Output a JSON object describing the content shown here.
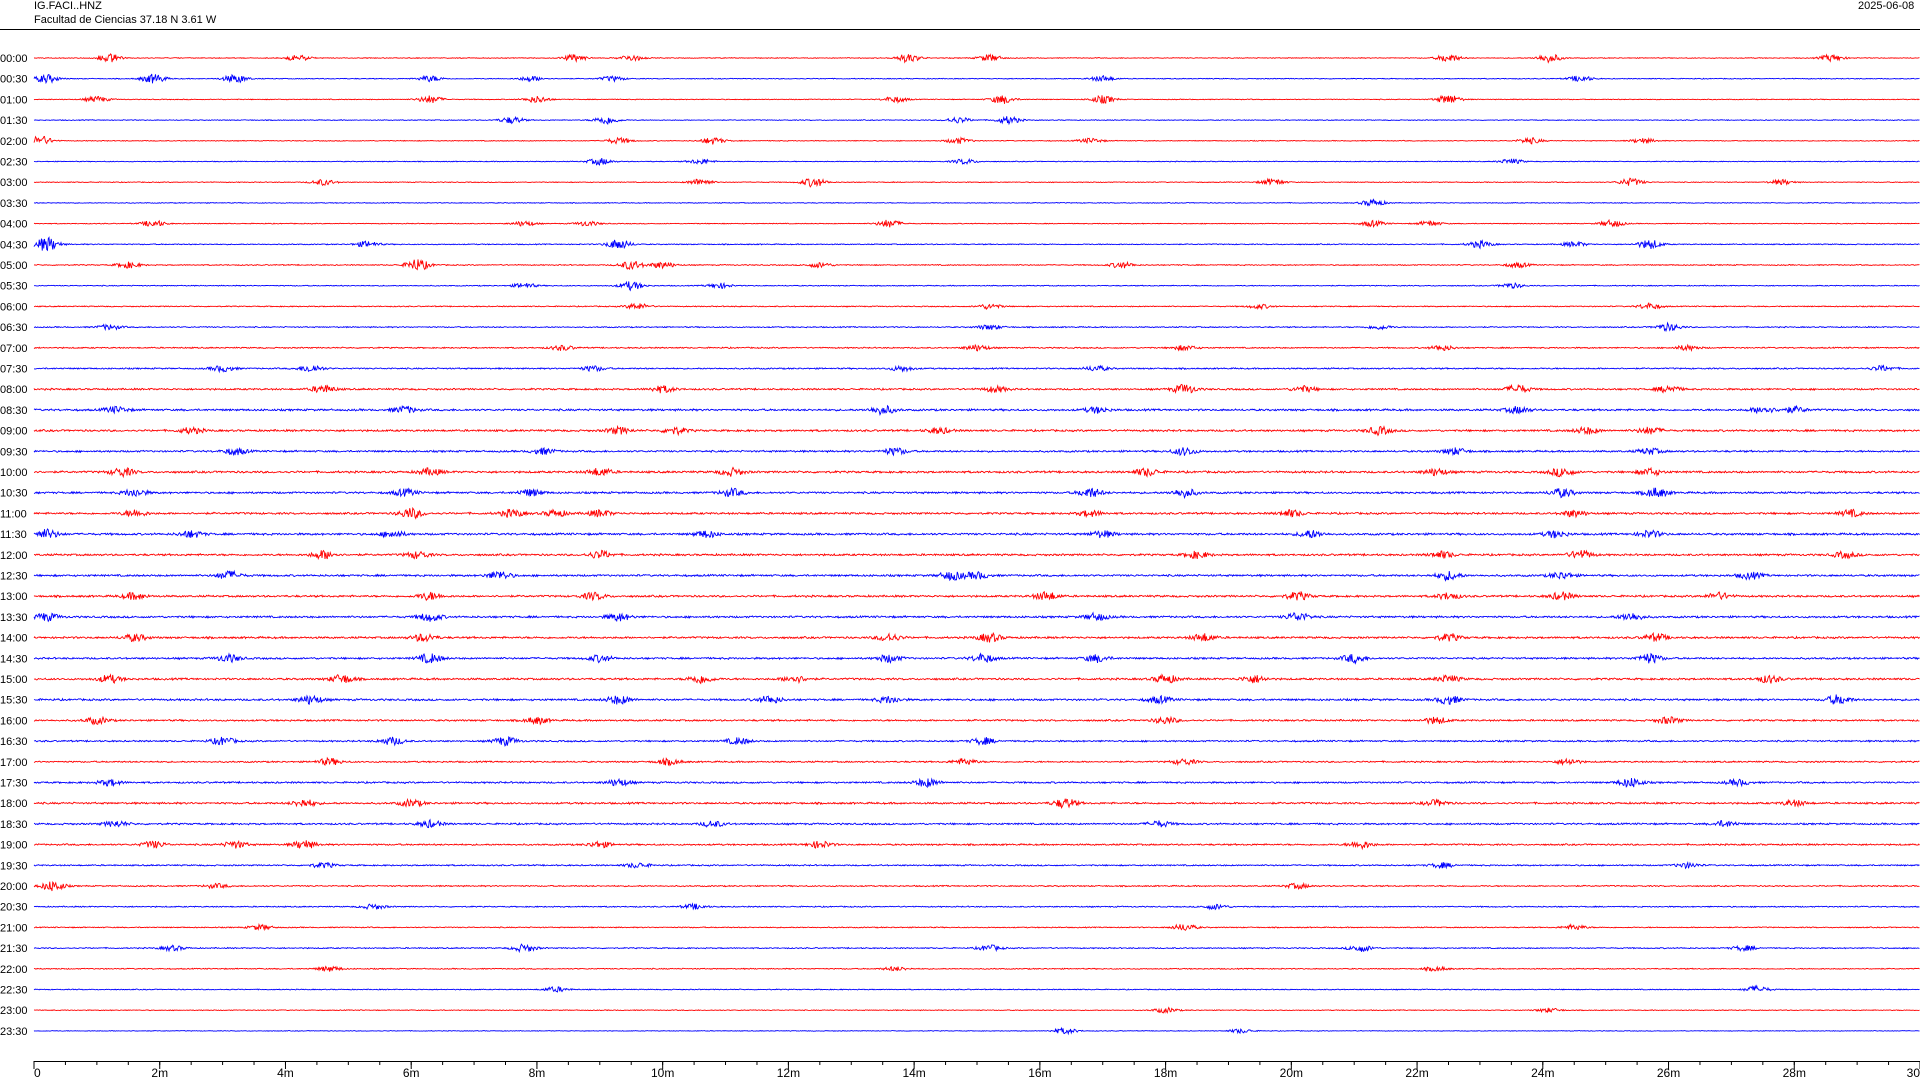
{
  "header": {
    "station_code": "IG.FACI..HNZ",
    "station_name": "Facultad de Ciencias  37.18 N 3.61 W",
    "date_text": "2025-06-08"
  },
  "colors": {
    "trace_a": "#ff0000",
    "trace_b": "#0000ff",
    "axis": "#000000",
    "background": "#ffffff"
  },
  "chart_data": {
    "type": "line",
    "title": "IG.FACI..HNZ",
    "subtitle": "Facultad de Ciencias  37.18 N 3.61 W",
    "xlabel": "",
    "ylabel": "",
    "xlim": [
      0,
      30
    ],
    "x_unit": "minutes",
    "grid": false,
    "row_labels": [
      "00:00",
      "00:30",
      "01:00",
      "01:30",
      "02:00",
      "02:30",
      "03:00",
      "03:30",
      "04:00",
      "04:30",
      "05:00",
      "05:30",
      "06:00",
      "06:30",
      "07:00",
      "07:30",
      "08:00",
      "08:30",
      "09:00",
      "09:30",
      "10:00",
      "10:30",
      "11:00",
      "11:30",
      "12:00",
      "12:30",
      "13:00",
      "13:30",
      "14:00",
      "14:30",
      "15:00",
      "15:30",
      "16:00",
      "16:30",
      "17:00",
      "17:30",
      "18:00",
      "18:30",
      "19:00",
      "19:30",
      "20:00",
      "20:30",
      "21:00",
      "21:30",
      "22:00",
      "22:30",
      "23:00",
      "23:30"
    ],
    "x_ticks": [
      {
        "value": 0,
        "label": "0"
      },
      {
        "value": 2,
        "label": "2m"
      },
      {
        "value": 4,
        "label": "4m"
      },
      {
        "value": 6,
        "label": "6m"
      },
      {
        "value": 8,
        "label": "8m"
      },
      {
        "value": 10,
        "label": "10m"
      },
      {
        "value": 12,
        "label": "12m"
      },
      {
        "value": 14,
        "label": "14m"
      },
      {
        "value": 16,
        "label": "16m"
      },
      {
        "value": 18,
        "label": "18m"
      },
      {
        "value": 20,
        "label": "20m"
      },
      {
        "value": 22,
        "label": "22m"
      },
      {
        "value": 24,
        "label": "24m"
      },
      {
        "value": 26,
        "label": "26m"
      },
      {
        "value": 28,
        "label": "28m"
      },
      {
        "value": 30,
        "label": "30"
      }
    ],
    "x_minor_step": 0.5,
    "noise_level": [
      0.35,
      0.35,
      0.35,
      0.35,
      0.35,
      0.35,
      0.35,
      0.35,
      0.35,
      0.45,
      0.45,
      0.4,
      0.45,
      0.5,
      0.55,
      0.6,
      0.75,
      0.85,
      0.85,
      0.8,
      0.9,
      0.85,
      0.85,
      0.9,
      0.85,
      0.85,
      0.85,
      0.85,
      0.85,
      0.8,
      0.85,
      0.85,
      0.75,
      0.7,
      0.65,
      0.75,
      0.8,
      0.75,
      0.7,
      0.6,
      0.55,
      0.5,
      0.45,
      0.5,
      0.45,
      0.4,
      0.35,
      0.3
    ],
    "events": [
      [
        [
          1.2,
          1.0
        ],
        [
          4.2,
          0.7
        ],
        [
          8.6,
          0.8
        ],
        [
          9.5,
          0.7
        ],
        [
          13.9,
          1.0
        ],
        [
          15.2,
          0.8
        ],
        [
          22.5,
          0.9
        ],
        [
          24.1,
          1.0
        ],
        [
          28.6,
          0.8
        ]
      ],
      [
        [
          0.2,
          1.0
        ],
        [
          1.9,
          1.1
        ],
        [
          3.2,
          1.0
        ],
        [
          6.3,
          0.7
        ],
        [
          7.9,
          0.6
        ],
        [
          9.2,
          0.6
        ],
        [
          17.0,
          0.7
        ],
        [
          24.6,
          0.7
        ]
      ],
      [
        [
          1.0,
          0.7
        ],
        [
          6.3,
          0.9
        ],
        [
          8.0,
          0.8
        ],
        [
          13.7,
          0.7
        ],
        [
          15.4,
          1.0
        ],
        [
          17.0,
          0.9
        ],
        [
          22.5,
          1.1
        ]
      ],
      [
        [
          7.6,
          0.8
        ],
        [
          9.1,
          1.0
        ],
        [
          14.7,
          0.7
        ],
        [
          15.5,
          0.9
        ]
      ],
      [
        [
          0.1,
          1.1
        ],
        [
          9.3,
          0.7
        ],
        [
          10.8,
          0.8
        ],
        [
          14.7,
          0.7
        ],
        [
          16.8,
          0.6
        ],
        [
          23.8,
          0.7
        ],
        [
          25.6,
          0.6
        ]
      ],
      [
        [
          9.0,
          0.8
        ],
        [
          10.6,
          0.6
        ],
        [
          14.8,
          0.6
        ],
        [
          23.5,
          0.6
        ]
      ],
      [
        [
          4.6,
          0.7
        ],
        [
          10.6,
          0.8
        ],
        [
          12.4,
          1.1
        ],
        [
          19.7,
          0.8
        ],
        [
          25.4,
          0.9
        ],
        [
          27.8,
          0.6
        ]
      ],
      [
        [
          21.3,
          0.8
        ]
      ],
      [
        [
          1.9,
          0.8
        ],
        [
          7.8,
          0.6
        ],
        [
          8.8,
          0.6
        ],
        [
          13.6,
          0.9
        ],
        [
          21.3,
          0.7
        ],
        [
          22.2,
          0.6
        ],
        [
          25.1,
          0.8
        ]
      ],
      [
        [
          0.2,
          1.7
        ],
        [
          5.3,
          0.7
        ],
        [
          9.3,
          1.2
        ],
        [
          23.0,
          0.8
        ],
        [
          25.7,
          1.1
        ],
        [
          24.5,
          0.6
        ]
      ],
      [
        [
          1.5,
          0.7
        ],
        [
          6.1,
          1.4
        ],
        [
          9.5,
          1.0
        ],
        [
          10.0,
          0.8
        ],
        [
          12.5,
          0.6
        ],
        [
          17.3,
          0.7
        ],
        [
          23.6,
          0.6
        ]
      ],
      [
        [
          9.5,
          1.0
        ],
        [
          7.8,
          0.6
        ],
        [
          10.9,
          0.6
        ],
        [
          23.5,
          0.6
        ]
      ],
      [
        [
          9.6,
          0.7
        ],
        [
          15.2,
          0.6
        ],
        [
          25.7,
          0.7
        ],
        [
          19.5,
          0.5
        ]
      ],
      [
        [
          1.2,
          0.6
        ],
        [
          15.2,
          0.6
        ],
        [
          26.0,
          0.9
        ],
        [
          21.4,
          0.5
        ]
      ],
      [
        [
          8.4,
          0.6
        ],
        [
          15.0,
          0.7
        ],
        [
          18.3,
          0.6
        ],
        [
          22.4,
          0.6
        ],
        [
          26.3,
          0.6
        ]
      ],
      [
        [
          3.0,
          0.7
        ],
        [
          4.4,
          0.9
        ],
        [
          8.9,
          0.6
        ],
        [
          13.8,
          0.6
        ],
        [
          16.9,
          0.6
        ],
        [
          29.4,
          0.6
        ]
      ],
      [
        [
          4.6,
          0.9
        ],
        [
          10.0,
          0.8
        ],
        [
          15.3,
          0.7
        ],
        [
          18.3,
          1.1
        ],
        [
          20.2,
          0.7
        ],
        [
          23.6,
          1.0
        ],
        [
          26.0,
          0.8
        ]
      ],
      [
        [
          1.3,
          0.7
        ],
        [
          5.9,
          0.8
        ],
        [
          13.5,
          1.0
        ],
        [
          16.9,
          0.7
        ],
        [
          23.6,
          0.8
        ],
        [
          27.5,
          0.8
        ],
        [
          28.0,
          0.7
        ]
      ],
      [
        [
          2.5,
          0.7
        ],
        [
          9.3,
          0.8
        ],
        [
          10.2,
          0.8
        ],
        [
          14.4,
          0.7
        ],
        [
          21.4,
          0.9
        ],
        [
          24.7,
          0.8
        ],
        [
          25.7,
          0.8
        ]
      ],
      [
        [
          3.2,
          0.8
        ],
        [
          8.1,
          0.7
        ],
        [
          13.7,
          0.8
        ],
        [
          18.3,
          0.9
        ],
        [
          22.6,
          0.8
        ],
        [
          25.7,
          0.7
        ]
      ],
      [
        [
          1.4,
          1.0
        ],
        [
          6.3,
          0.8
        ],
        [
          9.0,
          0.9
        ],
        [
          11.1,
          0.9
        ],
        [
          17.7,
          0.9
        ],
        [
          22.3,
          0.8
        ],
        [
          24.3,
          1.0
        ],
        [
          25.7,
          0.8
        ]
      ],
      [
        [
          1.6,
          0.9
        ],
        [
          5.9,
          0.8
        ],
        [
          7.9,
          0.8
        ],
        [
          11.1,
          0.9
        ],
        [
          16.8,
          1.1
        ],
        [
          18.3,
          1.0
        ],
        [
          24.3,
          1.0
        ],
        [
          25.8,
          1.1
        ]
      ],
      [
        [
          1.6,
          0.8
        ],
        [
          6.0,
          1.2
        ],
        [
          7.6,
          0.9
        ],
        [
          8.3,
          0.8
        ],
        [
          9.0,
          0.8
        ],
        [
          16.8,
          0.7
        ],
        [
          20.0,
          0.8
        ],
        [
          24.5,
          0.8
        ],
        [
          28.9,
          0.8
        ]
      ],
      [
        [
          0.2,
          1.1
        ],
        [
          2.5,
          0.8
        ],
        [
          5.7,
          0.8
        ],
        [
          10.7,
          0.8
        ],
        [
          17.0,
          0.8
        ],
        [
          20.3,
          0.9
        ],
        [
          24.2,
          0.8
        ],
        [
          25.7,
          0.8
        ]
      ],
      [
        [
          4.6,
          1.0
        ],
        [
          6.1,
          0.8
        ],
        [
          9.0,
          0.9
        ],
        [
          18.5,
          0.8
        ],
        [
          22.4,
          0.8
        ],
        [
          24.6,
          1.0
        ],
        [
          28.8,
          0.7
        ]
      ],
      [
        [
          3.1,
          1.0
        ],
        [
          7.4,
          1.0
        ],
        [
          14.6,
          1.0
        ],
        [
          15.0,
          0.8
        ],
        [
          22.5,
          1.0
        ],
        [
          24.3,
          0.8
        ],
        [
          27.3,
          0.8
        ]
      ],
      [
        [
          1.6,
          0.8
        ],
        [
          6.3,
          0.9
        ],
        [
          8.9,
          0.8
        ],
        [
          16.1,
          1.0
        ],
        [
          20.1,
          0.9
        ],
        [
          22.5,
          0.8
        ],
        [
          24.3,
          0.9
        ],
        [
          26.8,
          0.8
        ]
      ],
      [
        [
          0.2,
          0.9
        ],
        [
          6.3,
          1.0
        ],
        [
          9.3,
          0.9
        ],
        [
          16.9,
          0.8
        ],
        [
          20.1,
          1.0
        ],
        [
          25.4,
          0.9
        ]
      ],
      [
        [
          1.6,
          0.8
        ],
        [
          6.2,
          0.9
        ],
        [
          13.6,
          0.9
        ],
        [
          15.2,
          1.0
        ],
        [
          18.6,
          0.9
        ],
        [
          22.5,
          0.8
        ],
        [
          25.8,
          0.9
        ]
      ],
      [
        [
          3.1,
          0.9
        ],
        [
          6.3,
          1.1
        ],
        [
          9.0,
          0.8
        ],
        [
          13.6,
          0.9
        ],
        [
          15.1,
          1.0
        ],
        [
          16.9,
          0.9
        ],
        [
          21.0,
          1.0
        ],
        [
          25.7,
          1.1
        ]
      ],
      [
        [
          1.2,
          0.9
        ],
        [
          4.9,
          1.0
        ],
        [
          10.6,
          1.0
        ],
        [
          12.1,
          0.8
        ],
        [
          18.0,
          1.0
        ],
        [
          19.4,
          0.9
        ],
        [
          22.5,
          0.8
        ],
        [
          27.6,
          0.9
        ]
      ],
      [
        [
          4.4,
          1.0
        ],
        [
          9.3,
          1.0
        ],
        [
          11.7,
          0.9
        ],
        [
          13.6,
          0.8
        ],
        [
          17.9,
          0.8
        ],
        [
          22.5,
          1.0
        ],
        [
          28.7,
          1.1
        ]
      ],
      [
        [
          1.0,
          0.8
        ],
        [
          8.0,
          0.8
        ],
        [
          18.0,
          0.8
        ],
        [
          22.3,
          0.8
        ],
        [
          26.0,
          0.8
        ]
      ],
      [
        [
          3.0,
          0.9
        ],
        [
          5.7,
          0.9
        ],
        [
          7.5,
          1.0
        ],
        [
          11.2,
          0.8
        ],
        [
          15.1,
          0.8
        ]
      ],
      [
        [
          4.7,
          0.8
        ],
        [
          10.1,
          0.7
        ],
        [
          14.8,
          0.7
        ],
        [
          18.3,
          0.7
        ],
        [
          24.4,
          0.7
        ]
      ],
      [
        [
          1.2,
          0.7
        ],
        [
          9.3,
          0.8
        ],
        [
          14.2,
          1.0
        ],
        [
          25.4,
          1.1
        ],
        [
          27.1,
          0.7
        ]
      ],
      [
        [
          4.3,
          0.9
        ],
        [
          6.0,
          0.8
        ],
        [
          16.4,
          1.1
        ],
        [
          22.3,
          0.7
        ],
        [
          28.0,
          0.7
        ]
      ],
      [
        [
          1.3,
          0.7
        ],
        [
          6.3,
          0.8
        ],
        [
          10.8,
          0.7
        ],
        [
          17.9,
          0.7
        ],
        [
          26.9,
          0.7
        ]
      ],
      [
        [
          1.9,
          0.8
        ],
        [
          3.2,
          0.8
        ],
        [
          4.3,
          1.0
        ],
        [
          9.0,
          0.7
        ],
        [
          12.5,
          0.8
        ],
        [
          21.1,
          0.9
        ]
      ],
      [
        [
          4.6,
          0.6
        ],
        [
          9.6,
          0.6
        ],
        [
          22.4,
          0.6
        ],
        [
          26.3,
          0.6
        ]
      ],
      [
        [
          0.3,
          1.2
        ],
        [
          2.9,
          0.5
        ],
        [
          20.1,
          0.6
        ]
      ],
      [
        [
          5.4,
          0.6
        ],
        [
          10.5,
          0.6
        ],
        [
          18.8,
          0.6
        ]
      ],
      [
        [
          3.6,
          0.6
        ],
        [
          18.3,
          0.8
        ],
        [
          24.5,
          0.6
        ]
      ],
      [
        [
          2.2,
          0.6
        ],
        [
          7.8,
          0.9
        ],
        [
          15.2,
          0.7
        ],
        [
          21.1,
          0.8
        ],
        [
          27.2,
          0.6
        ]
      ],
      [
        [
          4.7,
          0.6
        ],
        [
          13.7,
          0.5
        ],
        [
          22.3,
          0.5
        ]
      ],
      [
        [
          8.3,
          0.6
        ],
        [
          27.4,
          0.8
        ]
      ],
      [
        [
          18.0,
          0.6
        ],
        [
          24.1,
          0.5
        ]
      ],
      [
        [
          16.4,
          0.7
        ],
        [
          19.2,
          0.5
        ]
      ]
    ]
  }
}
